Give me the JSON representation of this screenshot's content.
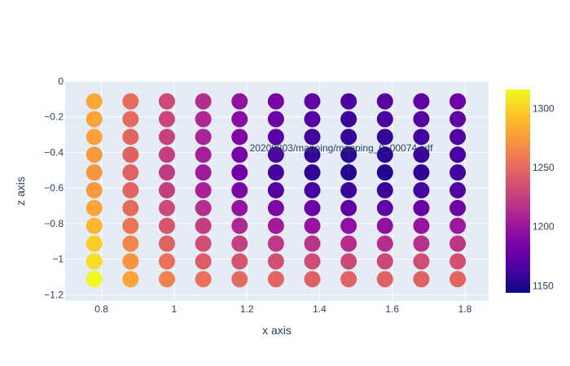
{
  "chart_data": {
    "type": "scatter",
    "xlabel": "x axis",
    "ylabel": "z axis",
    "xlim": [
      0.7,
      1.865
    ],
    "ylim": [
      -1.235,
      0.0
    ],
    "grid": true,
    "x_ticks": [
      {
        "v": 0.8,
        "label": "0.8"
      },
      {
        "v": 1.0,
        "label": "1"
      },
      {
        "v": 1.2,
        "label": "1.2"
      },
      {
        "v": 1.4,
        "label": "1.4"
      },
      {
        "v": 1.6,
        "label": "1.6"
      },
      {
        "v": 1.8,
        "label": "1.8"
      }
    ],
    "y_ticks": [
      {
        "v": 0.0,
        "label": "0"
      },
      {
        "v": -0.2,
        "label": "−0.2"
      },
      {
        "v": -0.4,
        "label": "−0.4"
      },
      {
        "v": -0.6,
        "label": "−0.6"
      },
      {
        "v": -0.8,
        "label": "−0.8"
      },
      {
        "v": -1.0,
        "label": "−1"
      },
      {
        "v": -1.2,
        "label": "−1.2"
      }
    ],
    "x": [
      0.78,
      0.88,
      0.98,
      1.08,
      1.18,
      1.28,
      1.38,
      1.48,
      1.58,
      1.68,
      1.78
    ],
    "z": [
      -0.1125,
      -0.2125,
      -0.3125,
      -0.4125,
      -0.5125,
      -0.6125,
      -0.7125,
      -0.8125,
      -0.9125,
      -1.0125,
      -1.1125
    ],
    "values": [
      [
        1282,
        1252,
        1232,
        1215,
        1197,
        1185,
        1175,
        1165,
        1170,
        1175,
        1180
      ],
      [
        1280,
        1250,
        1229,
        1212,
        1192,
        1180,
        1170,
        1160,
        1165,
        1170,
        1175
      ],
      [
        1278,
        1248,
        1227,
        1209,
        1188,
        1172,
        1162,
        1157,
        1157,
        1162,
        1168
      ],
      [
        1275,
        1246,
        1224,
        1206,
        1185,
        1167,
        1157,
        1154,
        1154,
        1159,
        1165
      ],
      [
        1273,
        1245,
        1222,
        1203,
        1182,
        1163,
        1155,
        1152,
        1152,
        1156,
        1162
      ],
      [
        1275,
        1247,
        1225,
        1208,
        1187,
        1170,
        1163,
        1160,
        1160,
        1163,
        1168
      ],
      [
        1280,
        1251,
        1232,
        1216,
        1198,
        1187,
        1179,
        1175,
        1175,
        1178,
        1181
      ],
      [
        1288,
        1257,
        1239,
        1225,
        1212,
        1204,
        1199,
        1196,
        1196,
        1199,
        1202
      ],
      [
        1298,
        1265,
        1246,
        1234,
        1226,
        1221,
        1218,
        1215,
        1215,
        1217,
        1220
      ],
      [
        1305,
        1272,
        1254,
        1243,
        1238,
        1235,
        1233,
        1231,
        1231,
        1233,
        1235
      ],
      [
        1315,
        1280,
        1263,
        1254,
        1250,
        1248,
        1246,
        1245,
        1245,
        1246,
        1248
      ]
    ],
    "colorscale": "plasma",
    "color_range": [
      1144,
      1316
    ],
    "colorbar_ticks": [
      {
        "v": 1150,
        "label": "1150"
      },
      {
        "v": 1200,
        "label": "1200"
      },
      {
        "v": 1250,
        "label": "1250"
      },
      {
        "v": 1300,
        "label": "1300"
      }
    ],
    "annotation": {
      "text": "20200803/mapping/mapping_0_00074.sdf",
      "x": 1.48,
      "z": -0.5125,
      "arrow": true
    }
  }
}
